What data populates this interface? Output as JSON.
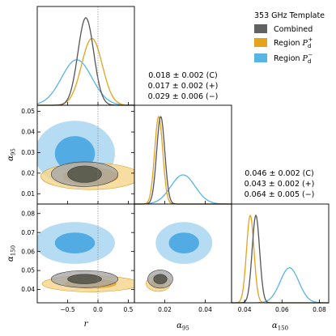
{
  "colors": {
    "combined": "#555555",
    "region_plus": "#e5a21c",
    "region_minus": "#58b4e3",
    "combined_fill_outer": "#a8a8a8",
    "combined_fill_inner": "#5a5a4e",
    "plus_fill_outer": "#f6d58c",
    "minus_fill_outer": "#a9d6f2",
    "minus_fill_inner": "#4ea8e2"
  },
  "legend": {
    "title": "353 GHz Template",
    "entries": [
      {
        "key": "combined",
        "label": "Combined"
      },
      {
        "key": "region_plus",
        "label": "Region ",
        "sub": "d",
        "sup": "+"
      },
      {
        "key": "region_minus",
        "label": "Region ",
        "sub": "d",
        "sup": "−"
      }
    ]
  },
  "annotations": {
    "alpha95": [
      "0.018 ± 0.002 (C)",
      "0.017 ± 0.002 (+)",
      "0.029 ± 0.006 (−)"
    ],
    "alpha150": [
      "0.046 ± 0.002 (C)",
      "0.043 ± 0.002 (+)",
      "0.064 ± 0.005 (−)"
    ]
  },
  "chart_data": {
    "type": "corner",
    "parameters": [
      {
        "key": "r",
        "label": "r",
        "range": [
          -1.0,
          0.6
        ],
        "ticks": [
          -0.5,
          0.0,
          0.5
        ],
        "tick_labels": [
          "−0.5",
          "0.0",
          "0.5"
        ]
      },
      {
        "key": "alpha95",
        "label": "α",
        "sub": "95",
        "range": [
          0.005,
          0.053
        ],
        "ticks": [
          0.01,
          0.02,
          0.03,
          0.04,
          0.05
        ],
        "tick_labels": [
          "0.01",
          "0.02",
          "0.03",
          "0.04",
          "0.05"
        ],
        "xticks": [
          0.02,
          0.04
        ],
        "xtick_labels": [
          "0.02",
          "0.04"
        ]
      },
      {
        "key": "alpha150",
        "label": "α",
        "sub": "150",
        "range": [
          0.033,
          0.085
        ],
        "ticks": [
          0.04,
          0.05,
          0.06,
          0.07,
          0.08
        ],
        "tick_labels": [
          "0.04",
          "0.05",
          "0.06",
          "0.07",
          "0.08"
        ],
        "xticks": [
          0.04,
          0.06,
          0.08
        ],
        "xtick_labels": [
          "0.04",
          "0.06",
          "0.08"
        ]
      }
    ],
    "reference_line_r": 0.0,
    "series": [
      {
        "key": "combined",
        "name": "Combined",
        "marginals": {
          "r": {
            "mean": -0.2,
            "sd": 0.13
          },
          "alpha95": {
            "mean": 0.018,
            "sd": 0.002
          },
          "alpha150": {
            "mean": 0.046,
            "sd": 0.002
          }
        },
        "contours": {
          "r_alpha95": {
            "cx": -0.22,
            "cy": 0.0195,
            "r1x": 0.28,
            "r1y": 0.004,
            "r2x": 0.55,
            "r2y": 0.006
          },
          "r_alpha150": {
            "cx": -0.22,
            "cy": 0.0455,
            "r1x": 0.28,
            "r1y": 0.0025,
            "r2x": 0.55,
            "r2y": 0.0045
          },
          "alpha95_alpha150": {
            "cx": 0.0178,
            "cy": 0.0455,
            "r1x": 0.0033,
            "r1y": 0.0025,
            "r2x": 0.0062,
            "r2y": 0.0048
          }
        }
      },
      {
        "key": "region_plus",
        "name": "Region P_d^+",
        "marginals": {
          "r": {
            "mean": -0.1,
            "sd": 0.17
          },
          "alpha95": {
            "mean": 0.017,
            "sd": 0.002
          },
          "alpha150": {
            "mean": 0.043,
            "sd": 0.002
          }
        },
        "contours": {
          "r_alpha95": {
            "cx": -0.12,
            "cy": 0.0185,
            "r1x": 0.45,
            "r1y": 0.004,
            "r2x": 0.82,
            "r2y": 0.0065
          },
          "r_alpha150": {
            "cx": -0.12,
            "cy": 0.043,
            "r1x": 0.42,
            "r1y": 0.0023,
            "r2x": 0.8,
            "r2y": 0.0042
          },
          "alpha95_alpha150": {
            "cx": 0.0168,
            "cy": 0.0432,
            "r1x": 0.0032,
            "r1y": 0.0023,
            "r2x": 0.006,
            "r2y": 0.0042
          }
        }
      },
      {
        "key": "region_minus",
        "name": "Region P_d^-",
        "marginals": {
          "r": {
            "mean": -0.35,
            "sd": 0.25
          },
          "alpha95": {
            "mean": 0.029,
            "sd": 0.006
          },
          "alpha150": {
            "mean": 0.064,
            "sd": 0.005
          }
        },
        "contours": {
          "r_alpha95": {
            "cx": -0.38,
            "cy": 0.0295,
            "r1x": 0.33,
            "r1y": 0.0085,
            "r2x": 0.66,
            "r2y": 0.016
          },
          "r_alpha150": {
            "cx": -0.38,
            "cy": 0.0645,
            "r1x": 0.33,
            "r1y": 0.0055,
            "r2x": 0.66,
            "r2y": 0.011
          },
          "alpha95_alpha150": {
            "cx": 0.0295,
            "cy": 0.0645,
            "r1x": 0.0075,
            "r1y": 0.0055,
            "r2x": 0.014,
            "r2y": 0.011
          }
        }
      }
    ]
  }
}
